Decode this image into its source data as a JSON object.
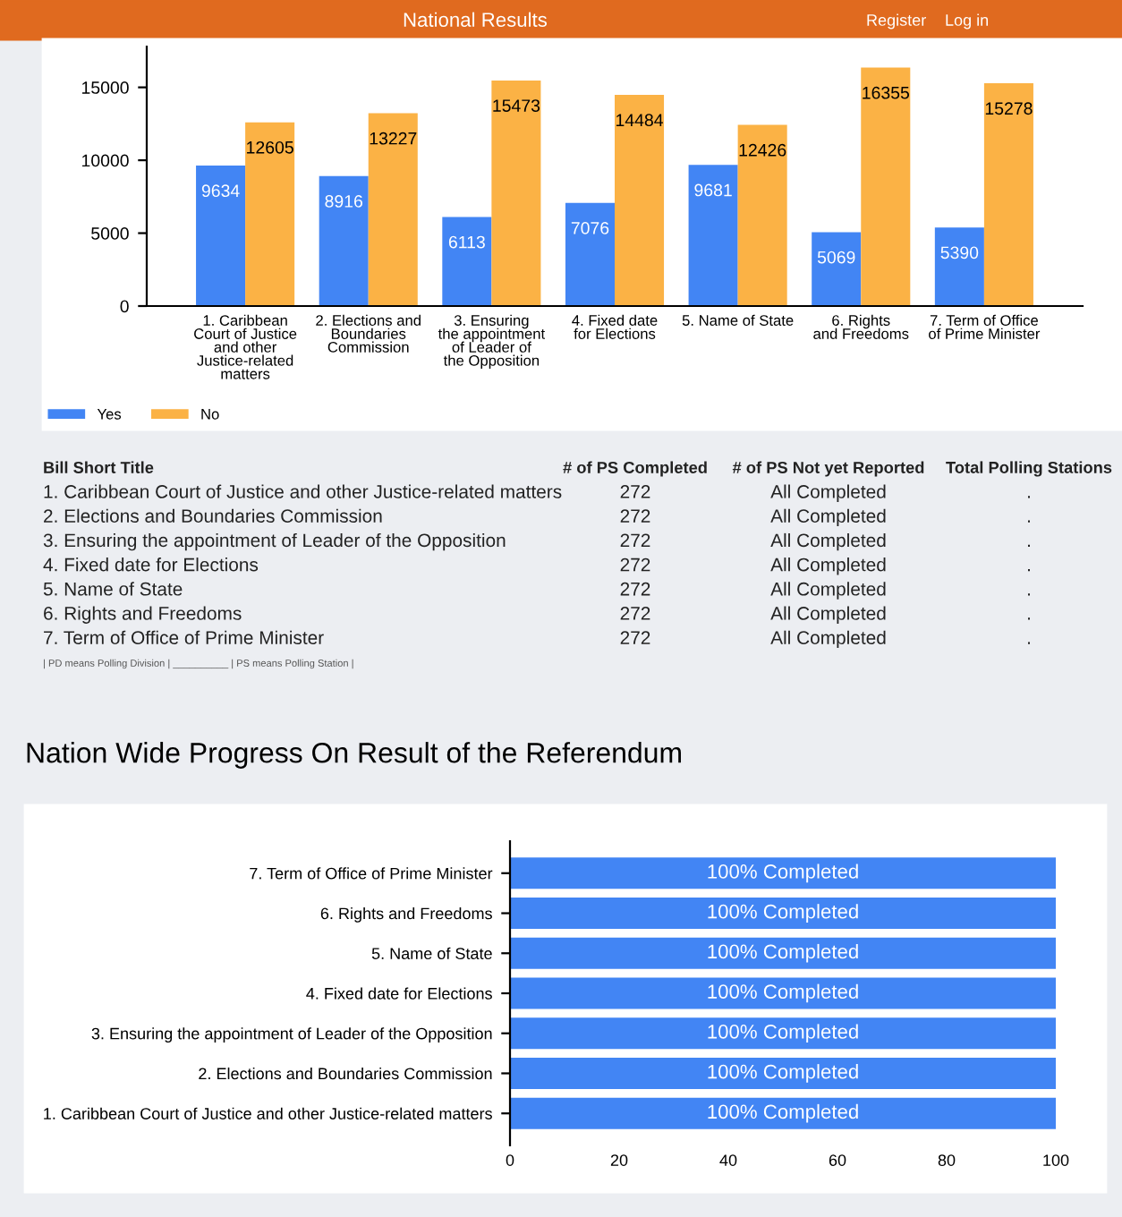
{
  "chart_data": [
    {
      "type": "bar",
      "categories": [
        "1. Caribbean\nCourt of Justice\nand other\nJustice-related\nmatters",
        "2. Elections and\nBoundaries\nCommission",
        "3. Ensuring\nthe appointment\nof Leader of\nthe Opposition",
        "4. Fixed date\nfor Elections",
        "5. Name of State",
        "6. Rights\nand Freedoms",
        "7. Term of Office\nof Prime Minister"
      ],
      "series": [
        {
          "name": "Yes",
          "color": "#4285f4",
          "values": [
            9634,
            8916,
            6113,
            7076,
            9681,
            5069,
            5390
          ]
        },
        {
          "name": "No",
          "color": "#fbb245",
          "values": [
            12605,
            13227,
            15473,
            14484,
            12426,
            16355,
            15278
          ]
        }
      ],
      "ylim": [
        0,
        17800
      ],
      "yticks": [
        0,
        5000,
        10000,
        15000
      ],
      "data_labels": true,
      "legend": "bottom left",
      "grid": false,
      "annotations": [
        "National Results",
        "Register",
        "Log in"
      ]
    },
    {
      "type": "other",
      "annotations": [
        "Bill Short Title",
        "# of PS Completed",
        "# of PS Not yet Reported",
        "Total Polling Stations",
        "1. Caribbean Court of Justice and other Justice-related matters",
        "272",
        "All Completed",
        ".",
        "2. Elections and Boundaries Commission",
        "272",
        "All Completed",
        ".",
        "3. Ensuring the appointment of Leader of the Opposition",
        "272",
        "All Completed",
        ".",
        "4. Fixed date for Elections",
        "272",
        "All Completed",
        ".",
        "5. Name of State",
        "272",
        "All Completed",
        ".",
        "6. Rights and Freedoms",
        "272",
        "All Completed",
        ".",
        "7. Term of Office of Prime Minister",
        "272",
        "All Completed",
        ".",
        "| PD means Polling Division | __________ | PS means Polling Station |"
      ]
    },
    {
      "type": "bar",
      "orientation": "horizontal",
      "title": "Nation Wide Progress On Result of the Referendum",
      "categories": [
        "7. Term of Office of Prime Minister",
        "6. Rights and Freedoms",
        "5. Name of State",
        "4. Fixed date for Elections",
        "3. Ensuring the appointment of Leader of the Opposition",
        "2. Elections and Boundaries Commission",
        "1. Caribbean Court of Justice and other Justice-related matters"
      ],
      "values": [
        100,
        100,
        100,
        100,
        100,
        100,
        100
      ],
      "color": "#4285f4",
      "value_labels": [
        "100% Completed",
        "100% Completed",
        "100% Completed",
        "100% Completed",
        "100% Completed",
        "100% Completed",
        "100% Completed"
      ],
      "xlim": [
        0,
        100
      ],
      "xticks": [
        0,
        20,
        40,
        60,
        80,
        100
      ],
      "grid": false
    }
  ]
}
